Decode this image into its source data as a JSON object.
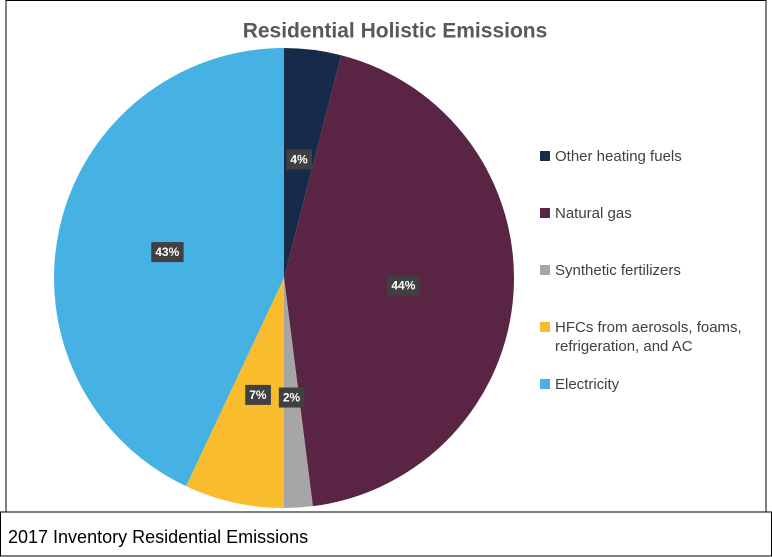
{
  "chart_data": {
    "type": "pie",
    "title": "Residential Holistic Emissions",
    "categories": [
      "Other heating fuels",
      "Natural gas",
      "Synthetic fertilizers",
      "HFCs from aerosols, foams, refrigeration, and AC",
      "Electricity"
    ],
    "values": [
      4,
      44,
      2,
      7,
      43
    ],
    "value_labels": [
      "4%",
      "44%",
      "2%",
      "7%",
      "43%"
    ],
    "colors": [
      "#172a4a",
      "#5a2545",
      "#a6a6a6",
      "#f9bc2c",
      "#45b2e3"
    ],
    "legend": "right"
  },
  "caption": "2017 Inventory Residential Emissions"
}
